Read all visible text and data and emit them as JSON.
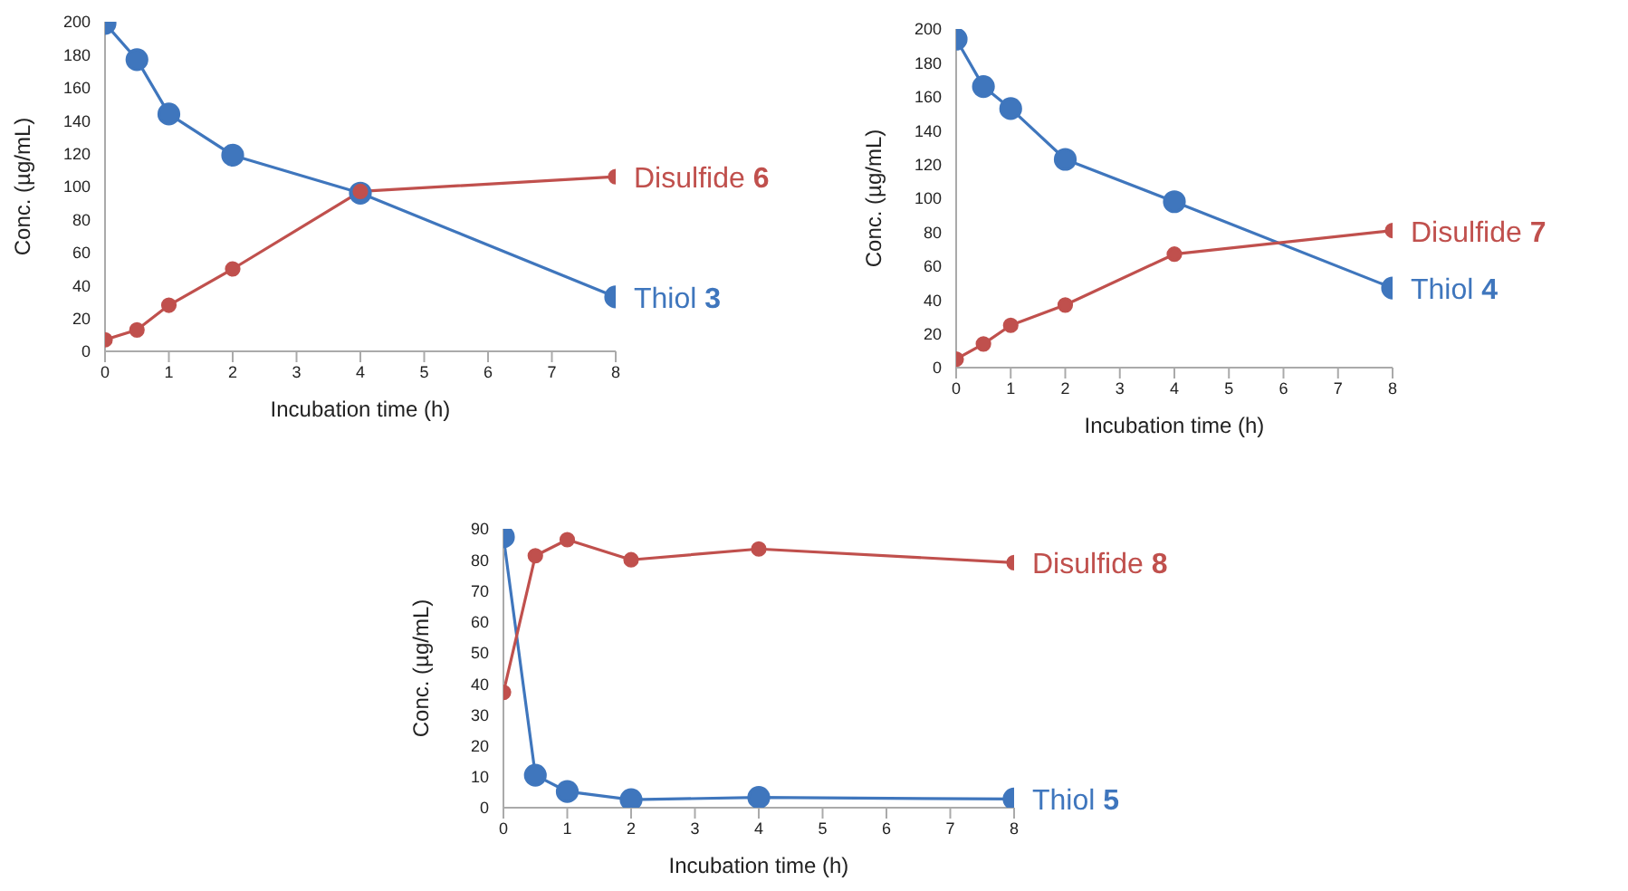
{
  "chart_data": [
    {
      "type": "line",
      "xlabel": "Incubation time (h)",
      "ylabel": "Conc. (µg/mL)",
      "x": [
        0,
        0.5,
        1,
        2,
        4,
        8
      ],
      "xlim": [
        0,
        8
      ],
      "xticks": [
        0,
        1,
        2,
        3,
        4,
        5,
        6,
        7,
        8
      ],
      "ylim": [
        0,
        200
      ],
      "yticks": [
        0,
        20,
        40,
        60,
        80,
        100,
        120,
        140,
        160,
        180,
        200
      ],
      "marker": "circle",
      "series": [
        {
          "name": "Thiol 3",
          "color": "#3f76bd",
          "values": [
            199,
            177,
            144,
            119,
            96,
            33
          ]
        },
        {
          "name": "Disulfide 6",
          "color": "#c0504d",
          "values": [
            7,
            13,
            28,
            50,
            97,
            106
          ]
        }
      ]
    },
    {
      "type": "line",
      "xlabel": "Incubation time (h)",
      "ylabel": "Conc. (µg/mL)",
      "x": [
        0,
        0.5,
        1,
        2,
        4,
        8
      ],
      "xlim": [
        0,
        8
      ],
      "xticks": [
        0,
        1,
        2,
        3,
        4,
        5,
        6,
        7,
        8
      ],
      "ylim": [
        0,
        200
      ],
      "yticks": [
        0,
        20,
        40,
        60,
        80,
        100,
        120,
        140,
        160,
        180,
        200
      ],
      "marker": "circle",
      "series": [
        {
          "name": "Thiol 4",
          "color": "#3f76bd",
          "values": [
            194,
            166,
            153,
            123,
            98,
            47
          ]
        },
        {
          "name": "Disulfide 7",
          "color": "#c0504d",
          "values": [
            5,
            14,
            25,
            37,
            67,
            81
          ]
        }
      ]
    },
    {
      "type": "line",
      "xlabel": "Incubation time (h)",
      "ylabel": "Conc. (µg/mL)",
      "x": [
        0,
        0.5,
        1,
        2,
        4,
        8
      ],
      "xlim": [
        0,
        8
      ],
      "xticks": [
        0,
        1,
        2,
        3,
        4,
        5,
        6,
        7,
        8
      ],
      "ylim": [
        0,
        90
      ],
      "yticks": [
        0,
        10,
        20,
        30,
        40,
        50,
        60,
        70,
        80,
        90
      ],
      "marker": "circle",
      "series": [
        {
          "name": "Thiol 5",
          "color": "#3f76bd",
          "values": [
            87.4,
            10.5,
            5.2,
            2.6,
            3.3,
            2.8
          ]
        },
        {
          "name": "Disulfide 8",
          "color": "#c0504d",
          "values": [
            37.2,
            81.3,
            86.5,
            80,
            83.5,
            79.1
          ]
        }
      ]
    }
  ]
}
